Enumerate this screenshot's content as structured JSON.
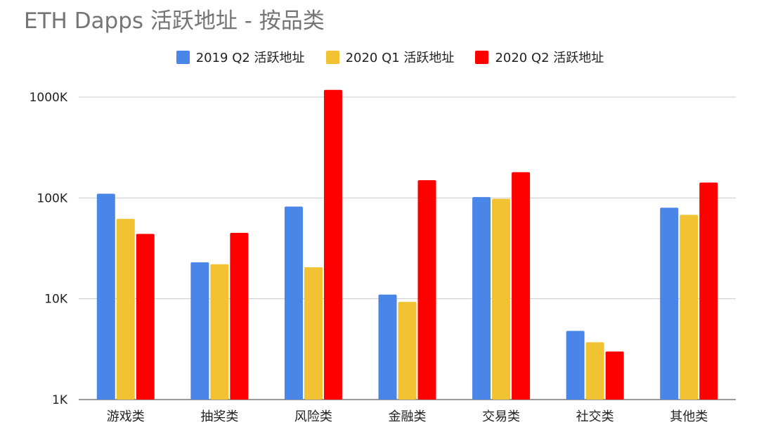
{
  "chart_data": {
    "type": "bar",
    "title": "ETH Dapps 活跃地址 - 按品类",
    "y_scale": "log",
    "ylim": [
      1000,
      1000000
    ],
    "y_ticks": [
      {
        "value": 1000,
        "label": "1K"
      },
      {
        "value": 10000,
        "label": "10K"
      },
      {
        "value": 100000,
        "label": "100K"
      },
      {
        "value": 1000000,
        "label": "1000K"
      }
    ],
    "grid": true,
    "legend_position": "top",
    "categories": [
      "游戏类",
      "抽奖类",
      "风险类",
      "金融类",
      "交易类",
      "社交类",
      "其他类"
    ],
    "series": [
      {
        "name": "2019 Q2 活跃地址",
        "color": "#4a86e8",
        "values": [
          110000,
          23000,
          82000,
          11000,
          102000,
          4800,
          80000
        ]
      },
      {
        "name": "2020 Q1 活跃地址",
        "color": "#f1c232",
        "values": [
          62000,
          22000,
          20500,
          9300,
          98000,
          3700,
          68000
        ]
      },
      {
        "name": "2020 Q2 活跃地址",
        "color": "#ff0000",
        "values": [
          44000,
          45000,
          1180000,
          150000,
          180000,
          3000,
          142000
        ]
      }
    ]
  }
}
